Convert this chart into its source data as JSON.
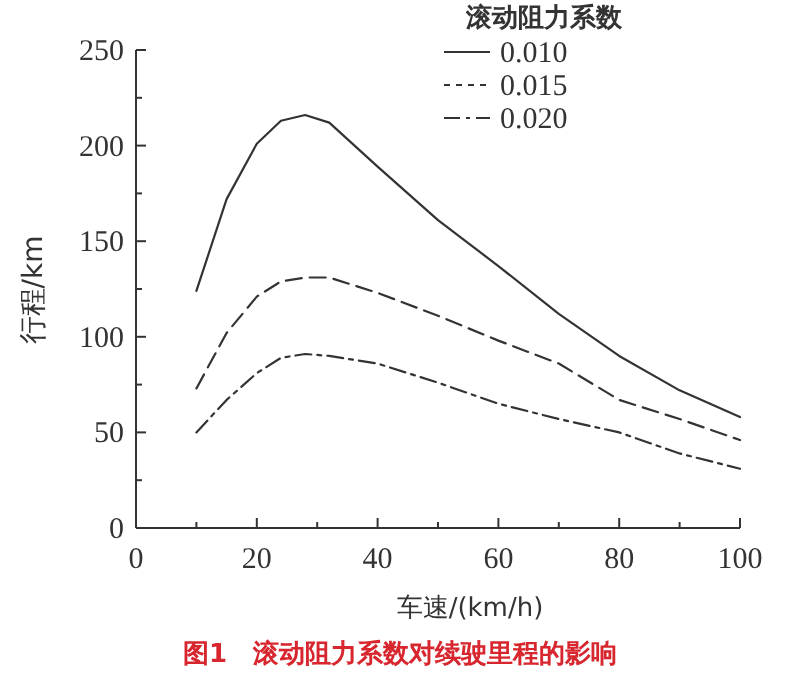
{
  "chart_data": {
    "type": "line",
    "title": "图1　滚动阻力系数对续驶里程的影响",
    "xlabel": "车速/(km/h)",
    "ylabel": "行程/km",
    "legend_title": "滚动阻力系数",
    "legend": "top right",
    "xlim": [
      0,
      100
    ],
    "ylim": [
      0,
      250
    ],
    "xticks": [
      0,
      {
        "value": 10,
        "label": null
      },
      20,
      {
        "value": 30,
        "label": null
      },
      40,
      {
        "value": 50,
        "label": null
      },
      60,
      {
        "value": 70,
        "label": null
      },
      80,
      {
        "value": 90,
        "label": null
      },
      100
    ],
    "yticks": [
      0,
      {
        "value": 25,
        "label": null
      },
      50,
      {
        "value": 75,
        "label": null
      },
      100,
      {
        "value": 125,
        "label": null
      },
      150,
      {
        "value": 175,
        "label": null
      },
      200,
      {
        "value": 225,
        "label": null
      },
      250
    ],
    "x": [
      10,
      15,
      20,
      24,
      28,
      32,
      40,
      50,
      60,
      70,
      80,
      90,
      100
    ],
    "series": [
      {
        "name": "0.010",
        "color": "#333333",
        "line_style": "solid",
        "values": [
          124,
          172,
          201,
          213,
          216,
          212,
          189,
          161,
          137,
          112,
          90,
          72,
          58
        ]
      },
      {
        "name": "0.015",
        "color": "#333333",
        "line_style": "dashed",
        "values": [
          73,
          102,
          121,
          129,
          131,
          131,
          123,
          111,
          98,
          86,
          67,
          57,
          46
        ]
      },
      {
        "name": "0.020",
        "color": "#333333",
        "line_style": "dashdot",
        "values": [
          50,
          67,
          81,
          89,
          91,
          90,
          86,
          76,
          65,
          57,
          50,
          39,
          31
        ]
      }
    ]
  }
}
